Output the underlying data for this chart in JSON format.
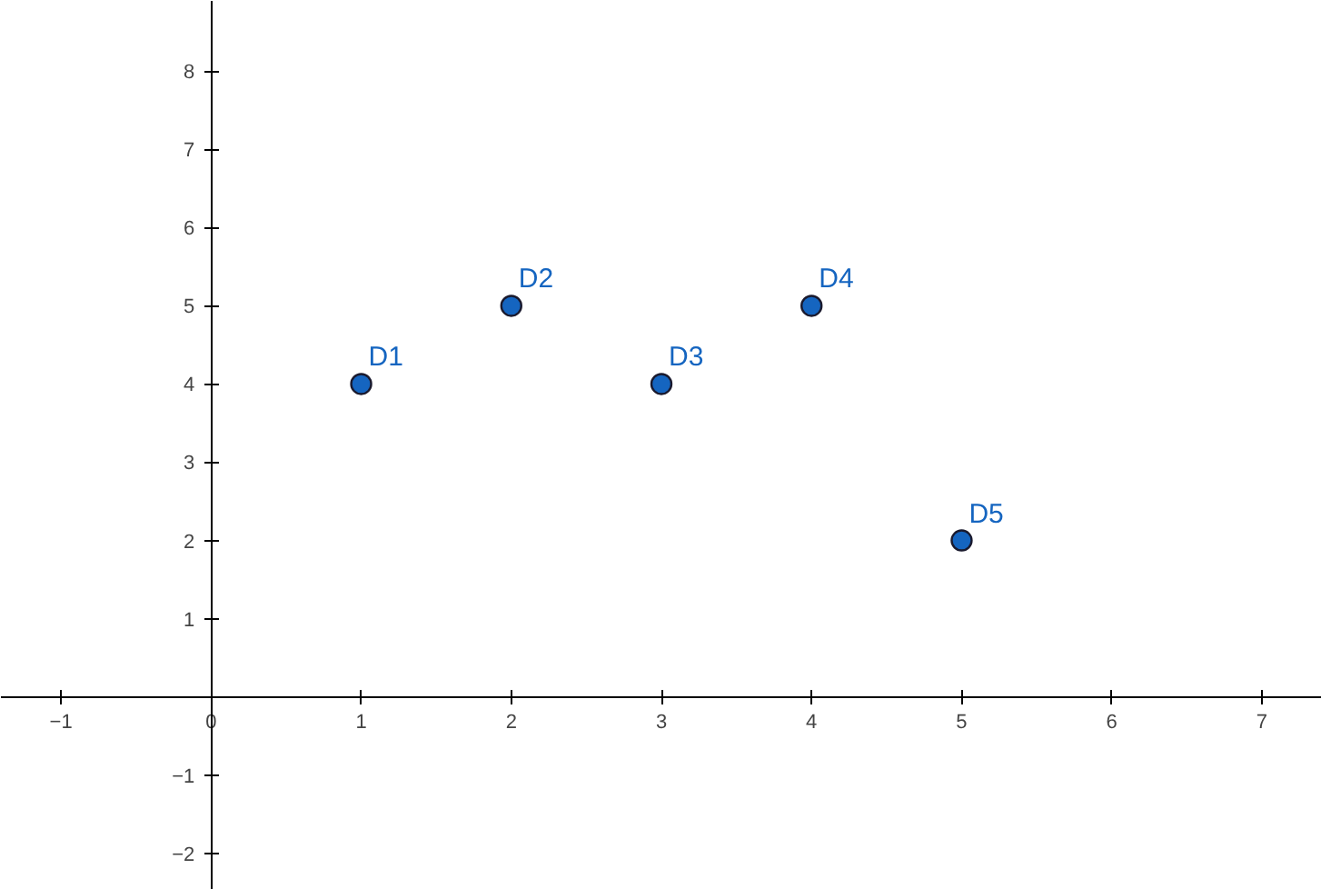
{
  "chart_data": {
    "type": "scatter",
    "x": [
      1,
      2,
      3,
      4,
      5
    ],
    "series": [
      {
        "color": "#1565c0",
        "values": [
          4,
          5,
          4,
          5,
          2
        ]
      }
    ],
    "marker": "circle",
    "xlim": [
      -1.4,
      7.4
    ],
    "ylim": [
      -2.47,
      8.9
    ],
    "xticks": [
      {
        "value": -1,
        "label": "−1"
      },
      0,
      1,
      2,
      3,
      4,
      5,
      6,
      7
    ],
    "yticks": [
      {
        "value": -2,
        "label": "−2"
      },
      {
        "value": -1,
        "label": "−1"
      },
      1,
      2,
      3,
      4,
      5,
      6,
      7,
      8
    ],
    "grid": false,
    "annotations": [
      {
        "text": "D1",
        "x": 1,
        "y": 4
      },
      {
        "text": "D2",
        "x": 2,
        "y": 5
      },
      {
        "text": "D3",
        "x": 3,
        "y": 4
      },
      {
        "text": "D4",
        "x": 4,
        "y": 5
      },
      {
        "text": "D5",
        "x": 5,
        "y": 2
      }
    ]
  }
}
